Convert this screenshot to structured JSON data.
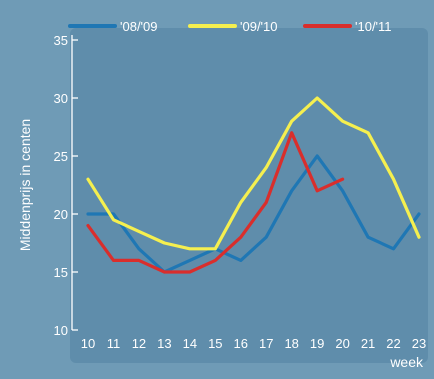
{
  "chart_data": {
    "type": "line",
    "title": "",
    "xlabel": "week",
    "ylabel": "Middenprijs in centen",
    "categories": [
      "10",
      "11",
      "12",
      "13",
      "14",
      "15",
      "16",
      "17",
      "18",
      "19",
      "20",
      "21",
      "22",
      "23"
    ],
    "x": [
      10,
      11,
      12,
      13,
      14,
      15,
      16,
      17,
      18,
      19,
      20,
      21,
      22,
      23
    ],
    "ylim": [
      10,
      35
    ],
    "yticks": [
      10,
      15,
      20,
      25,
      30,
      35
    ],
    "grid": false,
    "legend_position": "top",
    "series": [
      {
        "name": "'08/'09",
        "color": "#1f77b4",
        "values": [
          20,
          20,
          17,
          15,
          16,
          17,
          16,
          18,
          22,
          25,
          22,
          18,
          17,
          20
        ]
      },
      {
        "name": "'09/'10",
        "color": "#f5ef4f",
        "values": [
          23,
          19.5,
          18.5,
          17.5,
          17,
          17,
          21,
          24,
          28,
          30,
          28,
          27,
          23,
          18
        ]
      },
      {
        "name": "'10/'11",
        "color": "#d92e2c",
        "values": [
          19,
          16,
          16,
          15,
          15,
          16,
          18,
          21,
          27,
          22,
          23,
          null,
          null,
          null
        ]
      }
    ]
  }
}
